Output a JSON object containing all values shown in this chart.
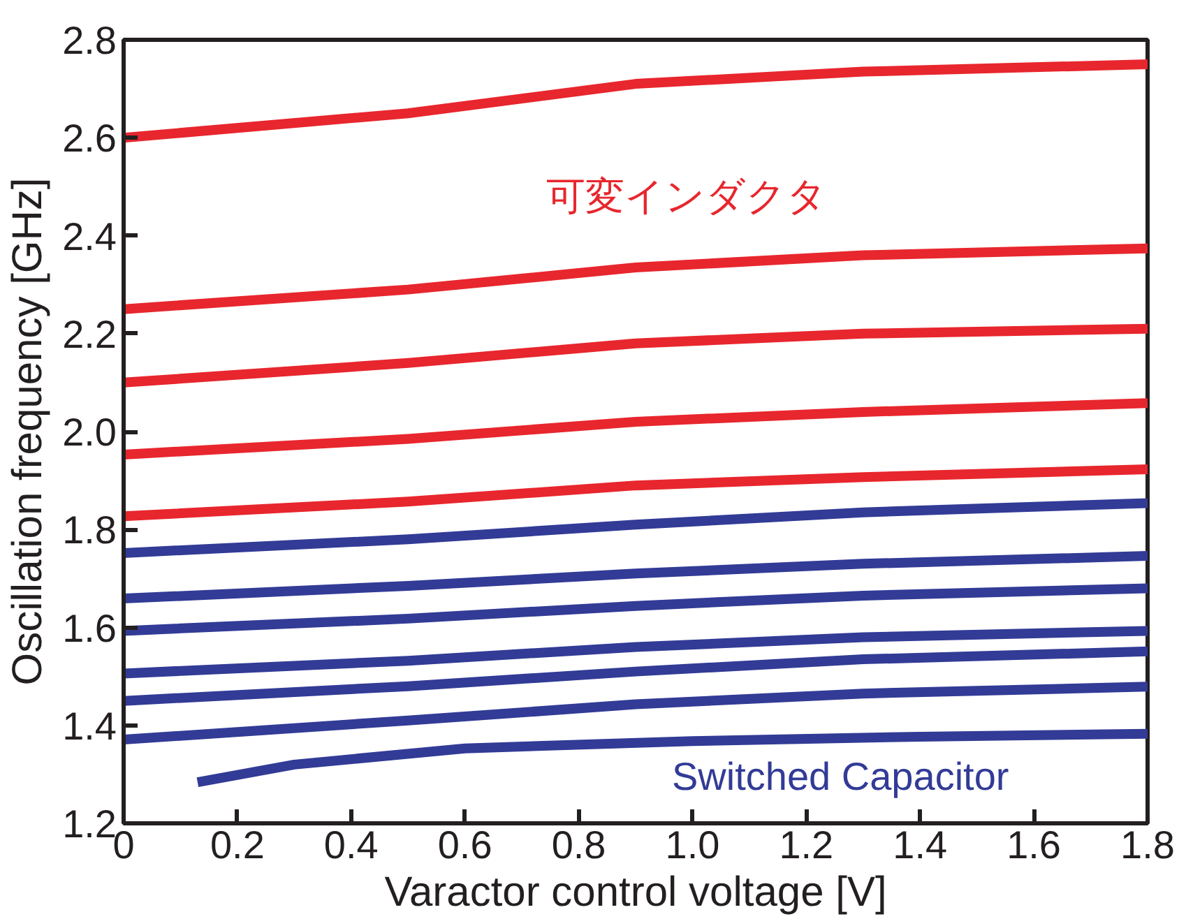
{
  "chart_data": {
    "type": "line",
    "xlabel": "Varactor control voltage [V]",
    "ylabel": "Oscillation frequency [GHz]",
    "xlim": [
      0,
      1.8
    ],
    "ylim": [
      1.2,
      2.8
    ],
    "xticks": [
      {
        "value": 0,
        "label": "0"
      },
      0.2,
      0.4,
      0.6,
      0.8,
      {
        "value": 1.0,
        "label": "1.0"
      },
      1.2,
      1.4,
      1.6,
      1.8
    ],
    "yticks": [
      1.2,
      1.4,
      1.6,
      1.8,
      {
        "value": 2.0,
        "label": "2.0"
      },
      2.2,
      2.4,
      2.6,
      2.8
    ],
    "grid": false,
    "marker": "none",
    "line_style": "solid",
    "x": [
      0,
      0.5,
      0.9,
      1.3,
      1.8
    ],
    "series": [
      {
        "color": "#e8262d",
        "values": [
          2.6,
          2.65,
          2.71,
          2.735,
          2.75
        ]
      },
      {
        "color": "#e8262d",
        "values": [
          2.25,
          2.29,
          2.335,
          2.36,
          2.374
        ]
      },
      {
        "color": "#e8262d",
        "values": [
          2.1,
          2.14,
          2.18,
          2.2,
          2.21
        ]
      },
      {
        "color": "#e8262d",
        "values": [
          1.953,
          1.985,
          2.02,
          2.04,
          2.058
        ]
      },
      {
        "color": "#e8262d",
        "values": [
          1.827,
          1.857,
          1.89,
          1.907,
          1.923
        ]
      },
      {
        "color": "#323b96",
        "values": [
          1.752,
          1.78,
          1.81,
          1.835,
          1.854
        ]
      },
      {
        "color": "#323b96",
        "values": [
          1.659,
          1.685,
          1.71,
          1.73,
          1.746
        ]
      },
      {
        "color": "#323b96",
        "values": [
          1.593,
          1.618,
          1.644,
          1.665,
          1.68
        ]
      },
      {
        "color": "#323b96",
        "values": [
          1.506,
          1.532,
          1.56,
          1.58,
          1.593
        ]
      },
      {
        "color": "#323b96",
        "values": [
          1.45,
          1.48,
          1.51,
          1.535,
          1.551
        ]
      },
      {
        "color": "#323b96",
        "values": [
          1.371,
          1.41,
          1.443,
          1.465,
          1.479
        ]
      },
      {
        "color": "#323b96",
        "x": [
          0.13,
          0.3,
          0.6,
          1.0,
          1.4,
          1.8
        ],
        "values": [
          1.284,
          1.32,
          1.353,
          1.368,
          1.377,
          1.383
        ]
      }
    ],
    "annotations": [
      "可変インダクタ",
      "Switched Capacitor"
    ]
  }
}
